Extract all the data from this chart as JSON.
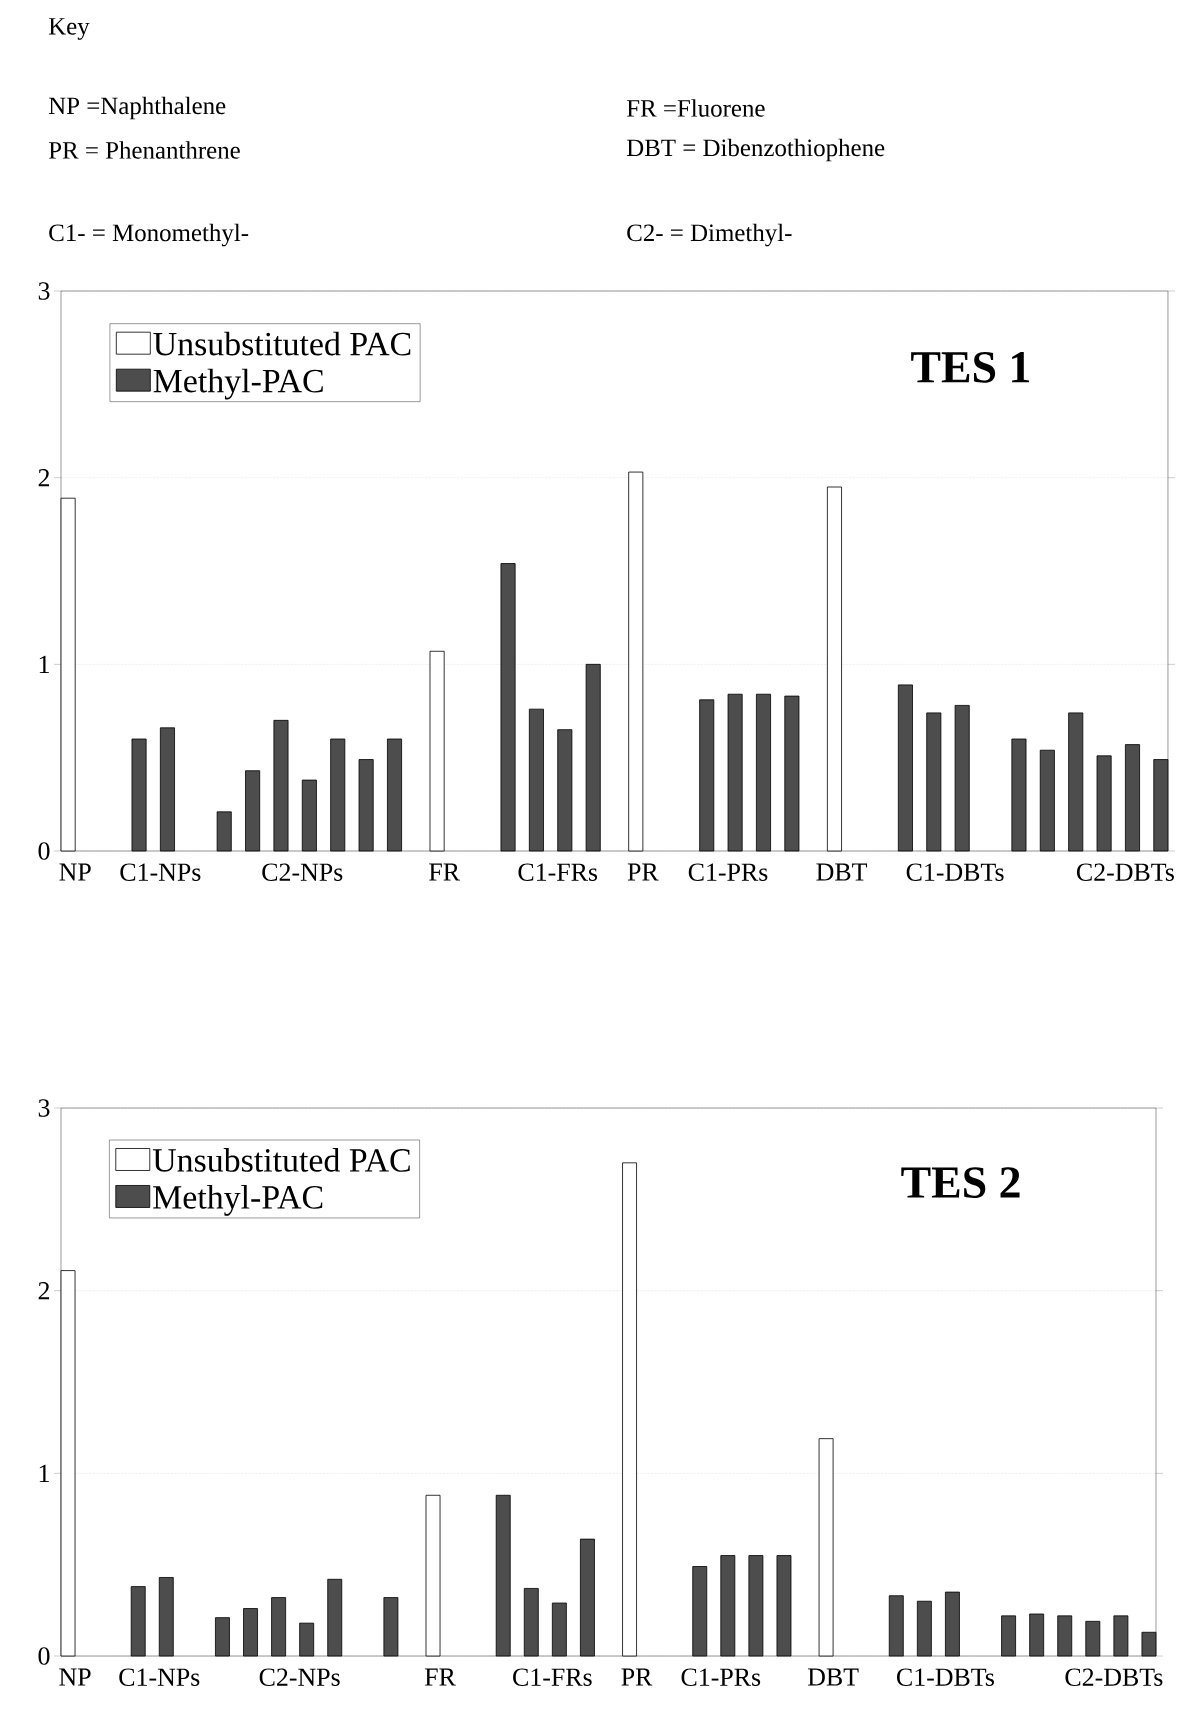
{
  "chart_data": [
    {
      "type": "bar",
      "title": "TES 1",
      "categories": [
        "NP",
        null,
        null,
        "C1-NPs",
        null,
        null,
        null,
        null,
        "C2-NPs",
        null,
        null,
        null,
        null,
        "FR",
        null,
        null,
        null,
        "C1-FRs",
        null,
        null,
        "PR",
        null,
        null,
        "C1-PRs",
        null,
        null,
        null,
        "DBT",
        null,
        null,
        null,
        "C1-DBTs",
        null,
        null,
        null,
        null,
        null,
        "C2-DBTs",
        null
      ],
      "series": [
        {
          "name": "Unsubstituted PAC",
          "color": "#ffffff",
          "values": [
            1.89,
            null,
            null,
            null,
            null,
            null,
            null,
            null,
            null,
            null,
            null,
            null,
            null,
            1.07,
            null,
            null,
            null,
            null,
            null,
            null,
            2.03,
            null,
            null,
            null,
            null,
            null,
            null,
            1.95,
            null,
            null,
            null,
            null,
            null,
            null,
            null,
            null,
            null,
            null,
            null
          ]
        },
        {
          "name": "Methyl-PAC",
          "color": "#4d4d4d",
          "values": [
            null,
            null,
            0.6,
            0.66,
            null,
            0.21,
            0.43,
            0.7,
            0.38,
            0.6,
            0.49,
            0.6,
            null,
            null,
            null,
            1.54,
            0.76,
            0.65,
            1.0,
            null,
            null,
            null,
            0.81,
            0.84,
            0.84,
            0.83,
            null,
            null,
            null,
            0.89,
            0.74,
            0.78,
            null,
            0.6,
            0.54,
            0.74,
            0.51,
            0.57,
            0.49
          ]
        }
      ],
      "ylim": [
        0,
        3
      ],
      "yticks": [
        0,
        1,
        2,
        3
      ],
      "grid": "y",
      "legend": "top left",
      "annotations": [
        "Key",
        "NP   =Naphthalene",
        "FR    =Fluorene",
        "PR   = Phenanthrene",
        "DBT = Dibenzothiophene",
        "C1-   = Monomethyl-",
        "C2-   = Dimethyl-"
      ]
    },
    {
      "type": "bar",
      "title": "TES 2",
      "categories": [
        "NP",
        null,
        null,
        "C1-NPs",
        null,
        null,
        null,
        null,
        "C2-NPs",
        null,
        null,
        null,
        null,
        "FR",
        null,
        null,
        null,
        "C1-FRs",
        null,
        null,
        "PR",
        null,
        null,
        "C1-PRs",
        null,
        null,
        null,
        "DBT",
        null,
        null,
        null,
        "C1-DBTs",
        null,
        null,
        null,
        null,
        null,
        "C2-DBTs",
        null
      ],
      "series": [
        {
          "name": "Unsubstituted PAC",
          "color": "#ffffff",
          "values": [
            2.11,
            null,
            null,
            null,
            null,
            null,
            null,
            null,
            null,
            null,
            null,
            null,
            null,
            0.88,
            null,
            null,
            null,
            null,
            null,
            null,
            2.7,
            null,
            null,
            null,
            null,
            null,
            null,
            1.19,
            null,
            null,
            null,
            null,
            null,
            null,
            null,
            null,
            null,
            null,
            null
          ]
        },
        {
          "name": "Methyl-PAC",
          "color": "#4d4d4d",
          "values": [
            null,
            null,
            0.38,
            0.43,
            null,
            0.21,
            0.26,
            0.32,
            0.18,
            0.42,
            null,
            0.32,
            null,
            null,
            null,
            0.88,
            0.37,
            0.29,
            0.64,
            null,
            null,
            null,
            0.49,
            0.55,
            0.55,
            0.55,
            null,
            null,
            null,
            0.33,
            0.3,
            0.35,
            null,
            0.22,
            0.23,
            0.22,
            0.19,
            0.22,
            0.13
          ]
        }
      ],
      "ylim": [
        0,
        3
      ],
      "yticks": [
        0,
        1,
        2,
        3
      ],
      "grid": "y",
      "legend": "top left"
    }
  ]
}
